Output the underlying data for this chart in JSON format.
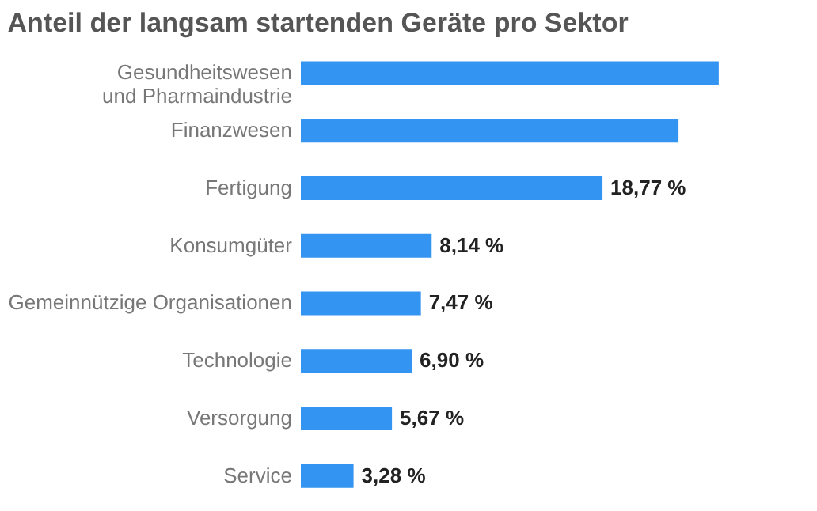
{
  "chart_data": {
    "type": "bar",
    "orientation": "horizontal",
    "title": "Anteil der langsam startenden Geräte pro Sektor",
    "categories": [
      "Gesundheitswesen\nund Pharmaindustrie",
      "Finanzwesen",
      "Fertigung",
      "Konsumgüter",
      "Gemeinnützige Organisationen",
      "Technologie",
      "Versorgung",
      "Service"
    ],
    "values": [
      26.0,
      23.5,
      18.77,
      8.14,
      7.47,
      6.9,
      5.67,
      3.28
    ],
    "value_labels": [
      null,
      null,
      "18,77 %",
      "8,14 %",
      "7,47 %",
      "6,90 %",
      "5,67 %",
      "3,28 %"
    ],
    "color": "#3394f2",
    "grid": false
  }
}
